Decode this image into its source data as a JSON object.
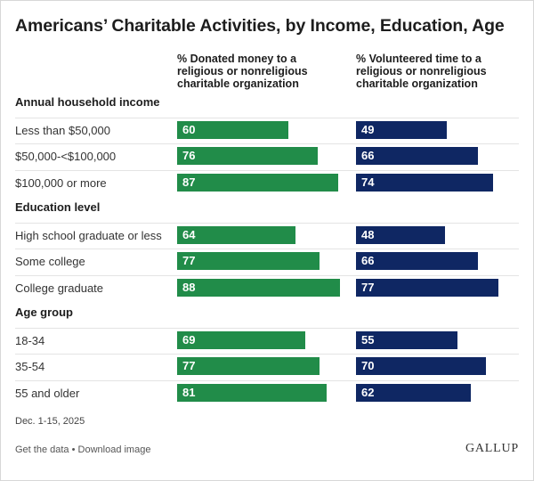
{
  "title": "Americans’ Charitable Activities, by Income, Education, Age",
  "footnote": "Dec. 1-15, 2025",
  "links": {
    "get_data": "Get the data",
    "separator": " • ",
    "download": "Download image"
  },
  "logo": "GALLUP",
  "colors": {
    "donated": "#218c49",
    "volunteered": "#0f2763"
  },
  "chart_data": {
    "type": "bar",
    "orientation": "horizontal",
    "title": "Americans’ Charitable Activities, by Income, Education, Age",
    "xlim": [
      0,
      100
    ],
    "series": [
      {
        "name": "% Donated money to a religious or nonreligious charitable organization",
        "color": "#218c49"
      },
      {
        "name": "% Volunteered time to a religious or nonreligious charitable organization",
        "color": "#0f2763"
      }
    ],
    "groups": [
      {
        "name": "Annual household income",
        "rows": [
          {
            "label": "Less than $50,000",
            "donated": 60,
            "volunteered": 49
          },
          {
            "label": "$50,000-<$100,000",
            "donated": 76,
            "volunteered": 66
          },
          {
            "label": "$100,000 or more",
            "donated": 87,
            "volunteered": 74
          }
        ]
      },
      {
        "name": "Education level",
        "rows": [
          {
            "label": "High school graduate or less",
            "donated": 64,
            "volunteered": 48
          },
          {
            "label": "Some college",
            "donated": 77,
            "volunteered": 66
          },
          {
            "label": "College graduate",
            "donated": 88,
            "volunteered": 77
          }
        ]
      },
      {
        "name": "Age group",
        "rows": [
          {
            "label": "18-34",
            "donated": 69,
            "volunteered": 55
          },
          {
            "label": "35-54",
            "donated": 77,
            "volunteered": 70
          },
          {
            "label": "55 and older",
            "donated": 81,
            "volunteered": 62
          }
        ]
      }
    ]
  }
}
